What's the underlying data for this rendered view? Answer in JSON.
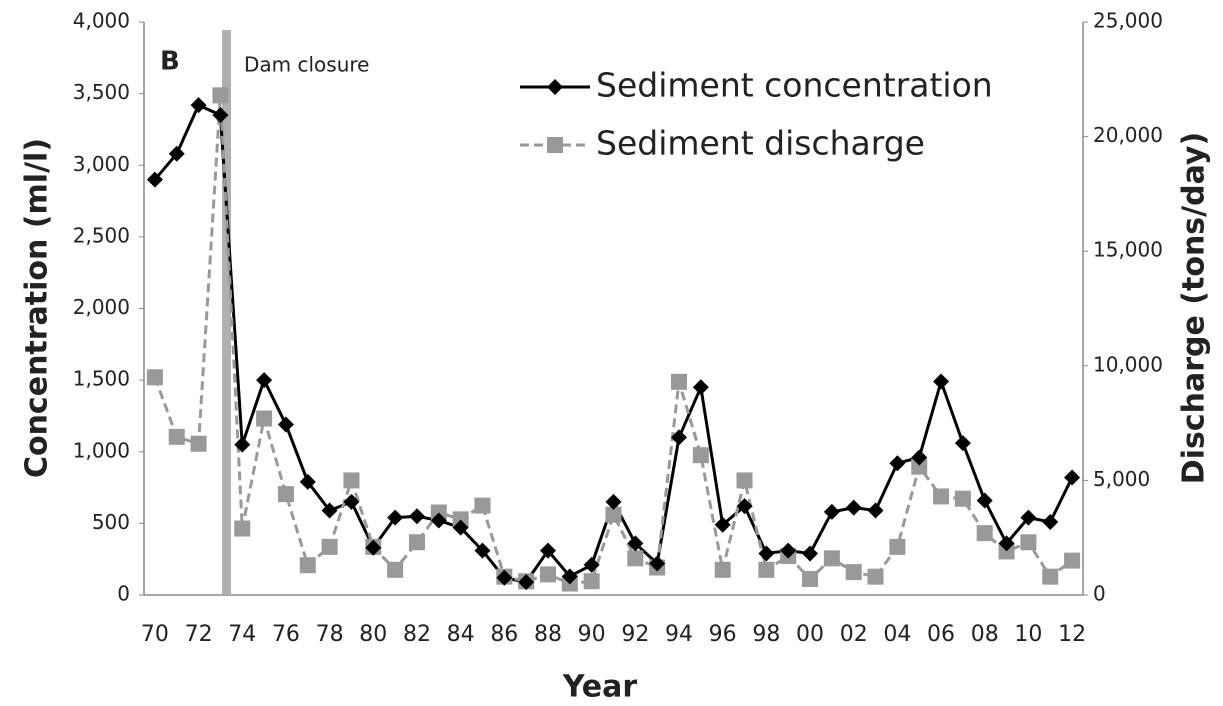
{
  "chart_data": {
    "type": "line",
    "panel_label": "B",
    "annotation": "Dam closure",
    "xlabel": "Year",
    "ylabel": "Concentration (ml/l)",
    "y2label": "Discharge (tons/day)",
    "categories": [
      "70",
      null,
      "72",
      null,
      "74",
      null,
      "76",
      null,
      "78",
      null,
      "80",
      null,
      "82",
      null,
      "84",
      null,
      "86",
      null,
      "88",
      null,
      "90",
      null,
      "92",
      null,
      "94",
      null,
      "96",
      null,
      "98",
      null,
      "00",
      null,
      "02",
      null,
      "04",
      null,
      "06",
      null,
      "08",
      null,
      "10",
      null,
      "12"
    ],
    "series": [
      {
        "name": "Sediment concentration",
        "color": "#000000",
        "marker": "diamond",
        "dashed": false,
        "values": [
          2900,
          3080,
          3420,
          3350,
          1050,
          1500,
          1190,
          790,
          590,
          650,
          330,
          540,
          550,
          520,
          470,
          310,
          120,
          90,
          310,
          130,
          210,
          650,
          360,
          220,
          1100,
          1450,
          490,
          620,
          290,
          310,
          290,
          580,
          610,
          590,
          920,
          960,
          1490,
          1060,
          660,
          360,
          540,
          510,
          820
        ]
      },
      {
        "name": "Sediment discharge",
        "color": "#999999",
        "marker": "square",
        "dashed": true,
        "axis": "y2",
        "values": [
          9500,
          6900,
          6600,
          21800,
          2900,
          7700,
          4400,
          1300,
          2100,
          5000,
          2100,
          1100,
          2300,
          3600,
          3300,
          3900,
          800,
          600,
          900,
          500,
          600,
          3500,
          1600,
          1200,
          9300,
          6100,
          1100,
          5000,
          1100,
          1700,
          700,
          1600,
          1000,
          800,
          2100,
          5600,
          4300,
          4200,
          2700,
          1900,
          2300,
          800,
          1500
        ]
      }
    ],
    "ylim": [
      0,
      4000
    ],
    "yticks": [
      0,
      500,
      {
        "value": 1000,
        "label": "1,000"
      },
      {
        "value": 1500,
        "label": "1,500"
      },
      {
        "value": 2000,
        "label": "2,000"
      },
      {
        "value": 2500,
        "label": "2,500"
      },
      {
        "value": 3000,
        "label": "3,000"
      },
      {
        "value": 3500,
        "label": "3,500"
      },
      {
        "value": 4000,
        "label": "4,000"
      }
    ],
    "y2lim": [
      0,
      25000
    ],
    "y2ticks": [
      0,
      {
        "value": 5000,
        "label": "5,000"
      },
      {
        "value": 10000,
        "label": "10,000"
      },
      {
        "value": 15000,
        "label": "15,000"
      },
      {
        "value": 20000,
        "label": "20,000"
      },
      {
        "value": 25000,
        "label": "25,000"
      }
    ],
    "grid": false
  }
}
